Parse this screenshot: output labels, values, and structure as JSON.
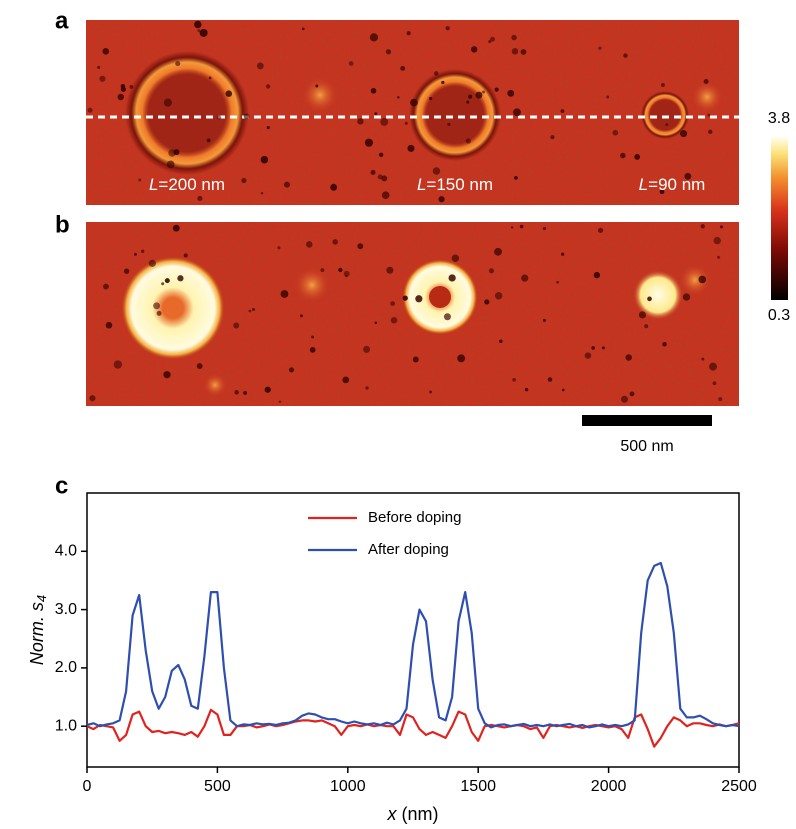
{
  "images": {
    "a": {
      "panel_label": "a",
      "annotations": [
        {
          "var": "L",
          "text": "=200 nm"
        },
        {
          "var": "L",
          "text": "=150 nm"
        },
        {
          "var": "L",
          "text": "=90 nm"
        }
      ]
    },
    "b": {
      "panel_label": "b"
    }
  },
  "colorbar": {
    "lim": [
      0.3,
      3.8
    ],
    "ticks": [
      0.3,
      3.8
    ]
  },
  "scale_bar": {
    "label": "500 nm"
  },
  "chart_data": {
    "type": "line",
    "panel_label": "c",
    "xlabel": {
      "var": "x",
      "unit": " (nm)"
    },
    "ylabel": {
      "text": "Norm. s",
      "subscript": "4"
    },
    "xlim": [
      0,
      2500
    ],
    "xticks": [
      0,
      500,
      1000,
      1500,
      2000,
      2500
    ],
    "ylim": [
      0.3,
      5.0
    ],
    "yticks": [
      {
        "value": 1,
        "label": "1.0"
      },
      {
        "value": 2,
        "label": "2.0"
      },
      {
        "value": 3,
        "label": "3.0"
      },
      {
        "value": 4,
        "label": "4.0"
      }
    ],
    "legend": "top-center",
    "x": [
      0,
      25,
      50,
      75,
      100,
      125,
      150,
      175,
      200,
      225,
      250,
      275,
      300,
      325,
      350,
      375,
      400,
      425,
      450,
      475,
      500,
      525,
      550,
      575,
      600,
      625,
      650,
      675,
      700,
      725,
      750,
      775,
      800,
      825,
      850,
      875,
      900,
      925,
      950,
      975,
      1000,
      1025,
      1050,
      1075,
      1100,
      1125,
      1150,
      1175,
      1200,
      1225,
      1250,
      1275,
      1300,
      1325,
      1350,
      1375,
      1400,
      1425,
      1450,
      1475,
      1500,
      1525,
      1550,
      1575,
      1600,
      1625,
      1650,
      1675,
      1700,
      1725,
      1750,
      1775,
      1800,
      1825,
      1850,
      1875,
      1900,
      1925,
      1950,
      1975,
      2000,
      2025,
      2050,
      2075,
      2100,
      2125,
      2150,
      2175,
      2200,
      2225,
      2250,
      2275,
      2300,
      2325,
      2350,
      2375,
      2400,
      2425,
      2450,
      2475,
      2500
    ],
    "series": [
      {
        "name": "Before doping",
        "color": "#e0231e",
        "values": [
          1.0,
          0.95,
          1.02,
          1.0,
          0.98,
          0.75,
          0.85,
          1.2,
          1.25,
          1.0,
          0.9,
          0.92,
          0.88,
          0.9,
          0.88,
          0.85,
          0.9,
          0.82,
          1.0,
          1.28,
          1.2,
          0.85,
          0.85,
          1.0,
          1.0,
          1.02,
          0.98,
          1.0,
          1.03,
          1.0,
          1.02,
          1.05,
          1.08,
          1.1,
          1.1,
          1.08,
          1.1,
          1.05,
          1.0,
          0.85,
          1.0,
          1.02,
          1.0,
          1.03,
          1.0,
          1.02,
          1.0,
          1.0,
          0.85,
          1.2,
          1.15,
          0.95,
          0.85,
          0.9,
          0.85,
          0.8,
          1.0,
          1.25,
          1.2,
          0.9,
          0.75,
          1.0,
          1.02,
          1.0,
          0.98,
          1.0,
          1.02,
          1.0,
          0.95,
          0.98,
          0.8,
          1.0,
          1.02,
          1.0,
          0.98,
          1.0,
          0.97,
          1.0,
          1.02,
          1.0,
          0.98,
          1.0,
          0.95,
          0.8,
          1.15,
          1.2,
          0.95,
          0.65,
          0.8,
          1.0,
          1.15,
          1.1,
          1.0,
          1.05,
          1.05,
          1.02,
          1.0,
          1.03,
          1.0,
          1.02,
          1.05
        ]
      },
      {
        "name": "After doping",
        "color": "#2f4fb0",
        "values": [
          1.02,
          1.05,
          1.0,
          1.03,
          1.05,
          1.1,
          1.6,
          2.9,
          3.25,
          2.3,
          1.6,
          1.3,
          1.5,
          1.95,
          2.05,
          1.8,
          1.35,
          1.3,
          2.2,
          3.3,
          3.3,
          2.0,
          1.1,
          1.0,
          1.03,
          1.02,
          1.05,
          1.03,
          1.04,
          1.02,
          1.05,
          1.06,
          1.1,
          1.18,
          1.22,
          1.2,
          1.15,
          1.12,
          1.12,
          1.08,
          1.05,
          1.08,
          1.05,
          1.03,
          1.05,
          1.02,
          1.06,
          1.03,
          1.1,
          1.3,
          2.4,
          3.0,
          2.8,
          1.8,
          1.15,
          1.1,
          1.5,
          2.8,
          3.3,
          2.6,
          1.3,
          1.05,
          0.98,
          1.02,
          1.03,
          1.0,
          1.02,
          1.04,
          1.0,
          1.02,
          1.0,
          1.03,
          1.0,
          1.02,
          1.04,
          1.0,
          1.02,
          0.98,
          1.0,
          1.03,
          1.0,
          1.02,
          1.0,
          1.03,
          1.1,
          2.6,
          3.5,
          3.75,
          3.8,
          3.4,
          2.6,
          1.3,
          1.15,
          1.15,
          1.18,
          1.12,
          1.05,
          1.02,
          1.0,
          1.02,
          1.0
        ]
      }
    ]
  }
}
